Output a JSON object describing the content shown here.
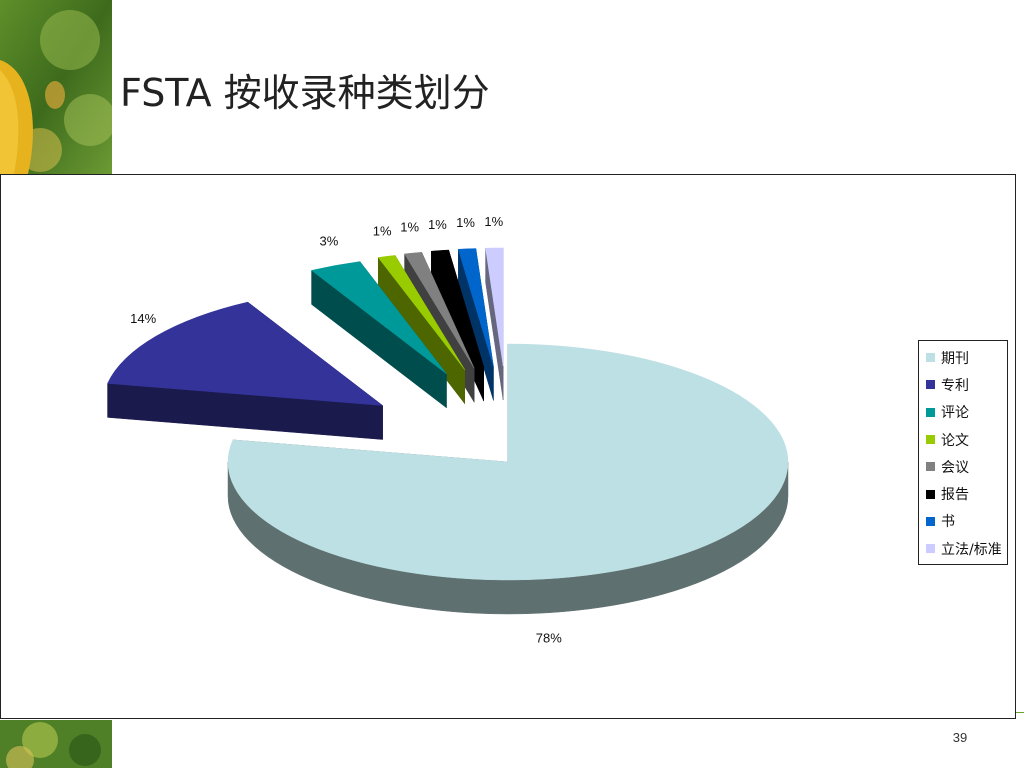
{
  "slide": {
    "title": "FSTA 按收录种类划分",
    "page_number": "39"
  },
  "chart_data": {
    "type": "pie",
    "style": "3d-exploded",
    "title": "",
    "categories": [
      "期刊",
      "专利",
      "评论",
      "论文",
      "会议",
      "报告",
      "书",
      "立法/标准"
    ],
    "values": [
      78,
      14,
      3,
      1,
      1,
      1,
      1,
      1
    ],
    "data_labels": [
      "78%",
      "14%",
      "3%",
      "1%",
      "1%",
      "1%",
      "1%",
      "1%"
    ],
    "colors": [
      "#bde0e4",
      "#333399",
      "#009999",
      "#99cc00",
      "#808080",
      "#000000",
      "#0066cc",
      "#ccccff"
    ],
    "side_colors": [
      "#5f7070",
      "#1a1a4d",
      "#004d4d",
      "#4d6600",
      "#404040",
      "#000000",
      "#003366",
      "#66667f"
    ],
    "legend_position": "right"
  }
}
